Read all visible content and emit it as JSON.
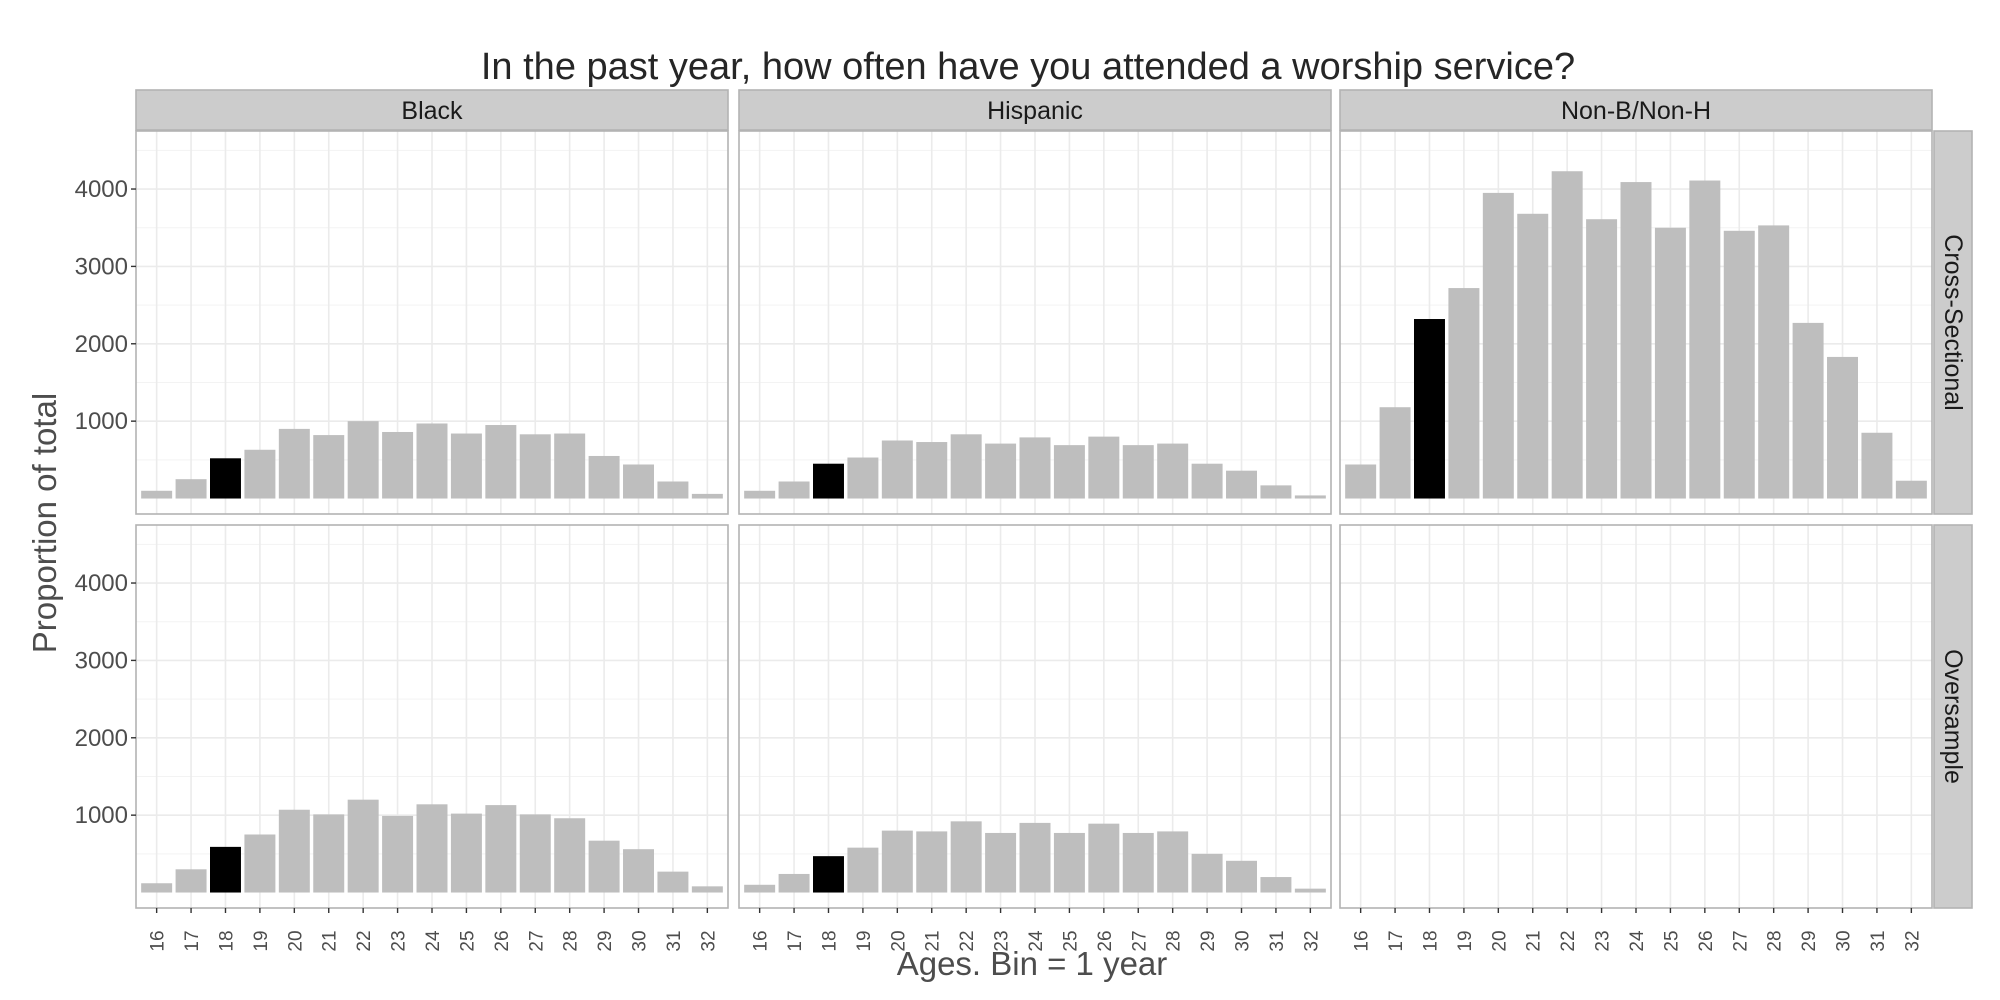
{
  "chart_data": {
    "type": "bar",
    "title": "In the past year, how often have you attended a worship service?",
    "xlabel": "Ages. Bin = 1 year",
    "ylabel": "Proportion of total",
    "categories": [
      "16",
      "17",
      "18",
      "19",
      "20",
      "21",
      "22",
      "23",
      "24",
      "25",
      "26",
      "27",
      "28",
      "29",
      "30",
      "31",
      "32"
    ],
    "yticks": [
      1000,
      2000,
      3000,
      4000
    ],
    "ylim": [
      -200,
      4750
    ],
    "grid": true,
    "highlight_category": "18",
    "colors": {
      "bar": "#bebebe",
      "highlight": "#000000",
      "strip": "#cccccc",
      "grid": "#ebebeb",
      "border": "#b3b3b3"
    },
    "columns": [
      "Black",
      "Hispanic",
      "Non-B/Non-H"
    ],
    "rows": [
      "Cross-Sectional",
      "Oversample"
    ],
    "panels": [
      {
        "column": "Black",
        "row": "Cross-Sectional",
        "values": [
          100,
          250,
          520,
          630,
          900,
          820,
          1000,
          860,
          970,
          840,
          950,
          830,
          840,
          550,
          440,
          220,
          60
        ]
      },
      {
        "column": "Hispanic",
        "row": "Cross-Sectional",
        "values": [
          100,
          220,
          450,
          530,
          750,
          730,
          830,
          710,
          790,
          690,
          800,
          690,
          710,
          450,
          360,
          170,
          40
        ]
      },
      {
        "column": "Non-B/Non-H",
        "row": "Cross-Sectional",
        "values": [
          440,
          1180,
          2320,
          2720,
          3950,
          3680,
          4230,
          3610,
          4090,
          3500,
          4110,
          3460,
          3530,
          2270,
          1830,
          850,
          230
        ]
      },
      {
        "column": "Black",
        "row": "Oversample",
        "values": [
          120,
          300,
          590,
          750,
          1070,
          1010,
          1200,
          990,
          1140,
          1020,
          1130,
          1010,
          960,
          670,
          560,
          270,
          80
        ]
      },
      {
        "column": "Hispanic",
        "row": "Oversample",
        "values": [
          100,
          240,
          470,
          580,
          800,
          790,
          920,
          770,
          900,
          770,
          890,
          770,
          790,
          500,
          410,
          200,
          50
        ]
      },
      {
        "column": "Non-B/Non-H",
        "row": "Oversample",
        "values": []
      }
    ]
  }
}
